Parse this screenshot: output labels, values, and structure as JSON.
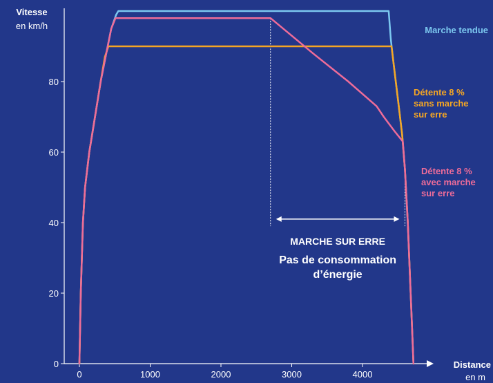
{
  "chart_data": {
    "type": "line",
    "xlim": [
      0,
      5000
    ],
    "ylim": [
      0,
      100
    ],
    "x_ticks": [
      0,
      1000,
      2000,
      3000,
      4000
    ],
    "y_ticks": [
      0,
      20,
      40,
      60,
      80
    ],
    "x_tick_labels": [
      "0",
      "1000",
      "2000",
      "3000",
      "4000"
    ],
    "y_tick_labels": [
      "0",
      "20",
      "40",
      "60",
      "80"
    ],
    "ylabel": "Vitesse",
    "ylabel_unit": "en km/h",
    "xlabel": "Distance",
    "xlabel_unit": "en m",
    "grid": false,
    "series": [
      {
        "name": "Marche tendue",
        "name_lines": [
          "Marche tendue"
        ],
        "color": "#7cc8f0",
        "points": [
          [
            0,
            0
          ],
          [
            20,
            20
          ],
          [
            50,
            40
          ],
          [
            80,
            50
          ],
          [
            140,
            60
          ],
          [
            220,
            70
          ],
          [
            300,
            80
          ],
          [
            380,
            88
          ],
          [
            450,
            95
          ],
          [
            520,
            99
          ],
          [
            550,
            100
          ],
          [
            4370,
            100
          ],
          [
            4400,
            92
          ],
          [
            4440,
            85
          ],
          [
            4500,
            75
          ],
          [
            4560,
            65
          ],
          [
            4600,
            55
          ],
          [
            4640,
            40
          ],
          [
            4670,
            25
          ],
          [
            4700,
            10
          ],
          [
            4720,
            0
          ]
        ]
      },
      {
        "name": "Détente 8 % sans marche sur erre",
        "name_lines": [
          "Détente 8 %",
          "sans marche",
          "sur erre"
        ],
        "color": "#f5a623",
        "points": [
          [
            0,
            0
          ],
          [
            20,
            20
          ],
          [
            50,
            40
          ],
          [
            80,
            50
          ],
          [
            140,
            60
          ],
          [
            220,
            70
          ],
          [
            300,
            80
          ],
          [
            360,
            87
          ],
          [
            410,
            90
          ],
          [
            4410,
            90
          ],
          [
            4440,
            85
          ],
          [
            4500,
            75
          ],
          [
            4560,
            65
          ],
          [
            4600,
            55
          ],
          [
            4640,
            40
          ],
          [
            4670,
            25
          ],
          [
            4700,
            10
          ],
          [
            4720,
            0
          ]
        ]
      },
      {
        "name": "Détente 8 % avec marche sur erre",
        "name_lines": [
          "Détente 8 %",
          "avec marche",
          "sur erre"
        ],
        "color": "#ee6c99",
        "points": [
          [
            0,
            0
          ],
          [
            20,
            20
          ],
          [
            50,
            40
          ],
          [
            80,
            50
          ],
          [
            140,
            60
          ],
          [
            220,
            70
          ],
          [
            300,
            80
          ],
          [
            380,
            88
          ],
          [
            450,
            95
          ],
          [
            510,
            98
          ],
          [
            2700,
            98
          ],
          [
            3300,
            88
          ],
          [
            3800,
            80
          ],
          [
            4200,
            73
          ],
          [
            4300,
            70
          ],
          [
            4450,
            66
          ],
          [
            4570,
            63
          ],
          [
            4600,
            55
          ],
          [
            4640,
            40
          ],
          [
            4670,
            25
          ],
          [
            4700,
            10
          ],
          [
            4720,
            0
          ]
        ]
      }
    ],
    "annotation": {
      "x_start": 2700,
      "x_end": 4600,
      "title": "MARCHE SUR ERRE",
      "subtitle_lines": [
        "Pas de consommation",
        "d’énergie"
      ]
    }
  }
}
